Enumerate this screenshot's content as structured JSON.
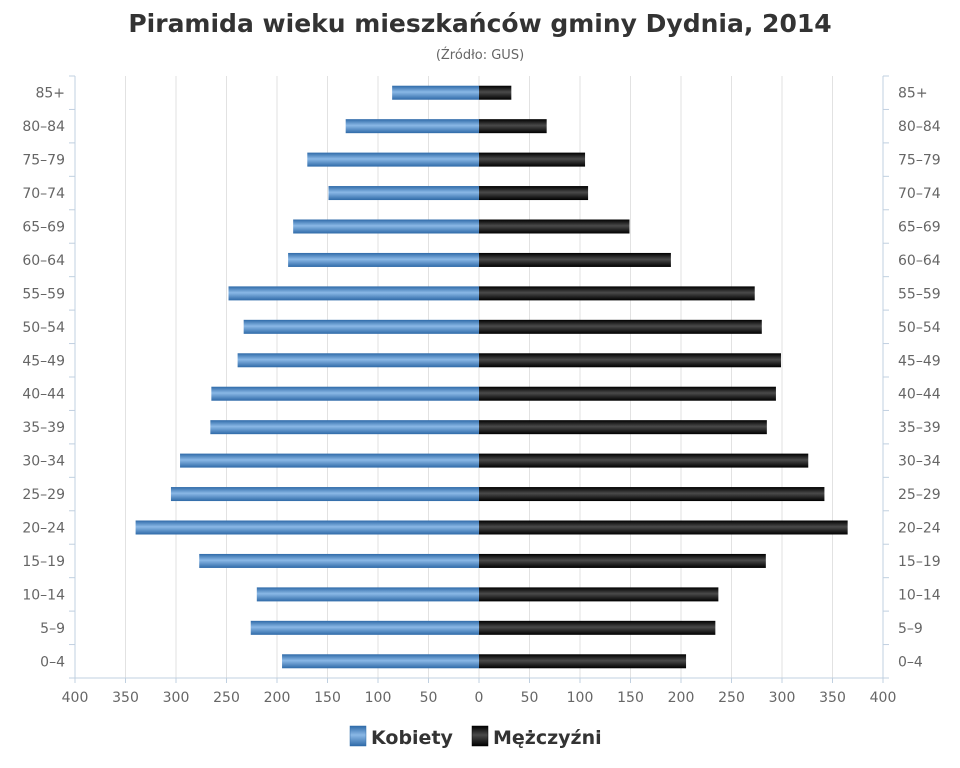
{
  "chart_data": {
    "type": "bar",
    "orientation": "horizontal",
    "title": "Piramida wieku mieszkańców gminy Dydnia, 2014",
    "subtitle": "(Źródło: GUS)",
    "categories": [
      "85+",
      "80–84",
      "75–79",
      "70–74",
      "65–69",
      "60–64",
      "55–59",
      "50–54",
      "45–49",
      "40–44",
      "35–39",
      "30–34",
      "25–29",
      "20–24",
      "15–19",
      "10–14",
      "5–9",
      "0–4"
    ],
    "series": [
      {
        "name": "Kobiety",
        "color": "#4a86c2",
        "values": [
          86,
          132,
          170,
          149,
          184,
          189,
          248,
          233,
          239,
          265,
          266,
          296,
          305,
          340,
          277,
          220,
          226,
          195
        ]
      },
      {
        "name": "Mężczyźni",
        "color": "#1e1e1e",
        "values": [
          32,
          67,
          105,
          108,
          149,
          190,
          273,
          280,
          299,
          294,
          285,
          326,
          342,
          365,
          284,
          237,
          234,
          205
        ]
      }
    ],
    "x_ticks": [
      "400",
      "350",
      "300",
      "250",
      "200",
      "150",
      "100",
      "50",
      "0",
      "50",
      "100",
      "150",
      "200",
      "250",
      "300",
      "350",
      "400"
    ],
    "xlim": [
      -400,
      400
    ],
    "grid": true,
    "legend_position": "bottom-center"
  }
}
